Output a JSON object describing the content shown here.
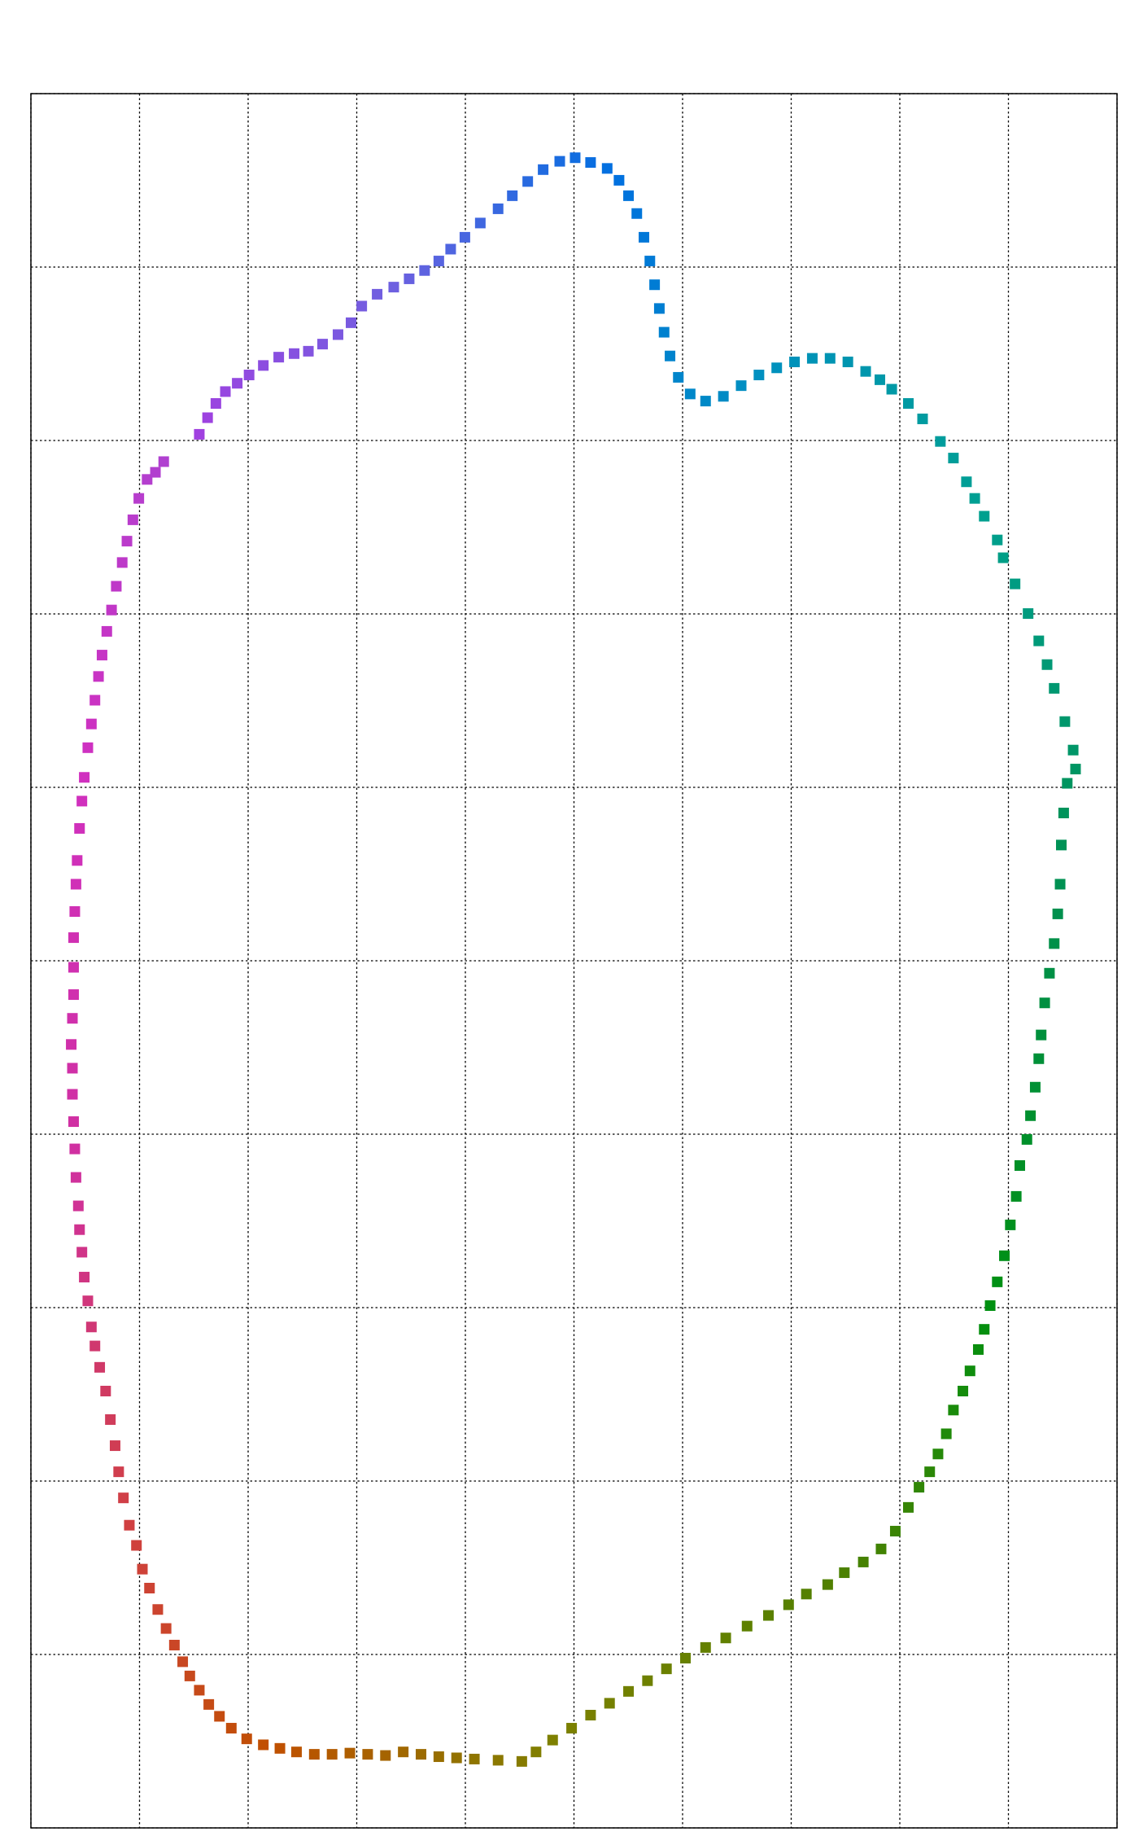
{
  "chart_data": {
    "type": "scatter",
    "grid": true,
    "marker": "square",
    "colormap": [
      "#a040e0",
      "#7060e0",
      "#0070e0",
      "#0090c0",
      "#00a090",
      "#009050",
      "#009010",
      "#508000",
      "#808000",
      "#c05000",
      "#d04040",
      "#d030a0",
      "#d030c0",
      "#b040d0"
    ],
    "xlim": [
      0,
      916
    ],
    "ylim": [
      0,
      1461
    ],
    "xticks": [
      0,
      91.6,
      183.2,
      274.8,
      366.4,
      458,
      549.6,
      641.2,
      732.8,
      824.4,
      916
    ],
    "yticks": [
      0,
      146.1,
      292.2,
      438.3,
      584.4,
      730.5,
      876.6,
      1022.7,
      1168.8,
      1314.9,
      1461
    ],
    "x": [
      142,
      149,
      156,
      164,
      174,
      184,
      196,
      209,
      222,
      234,
      246,
      259,
      270,
      279,
      292,
      306,
      319,
      332,
      344,
      354,
      366,
      379,
      394,
      406,
      419,
      432,
      446,
      459,
      472,
      486,
      496,
      504,
      511,
      517,
      522,
      526,
      530,
      534,
      539,
      546,
      556,
      569,
      584,
      599,
      614,
      629,
      644,
      659,
      674,
      689,
      704,
      716,
      726,
      740,
      752,
      767,
      778,
      789,
      796,
      804,
      815,
      820,
      830,
      841,
      850,
      857,
      863,
      872,
      879,
      881,
      874,
      871,
      869,
      868,
      866,
      863,
      859,
      855,
      852,
      850,
      847,
      843,
      840,
      834,
      831,
      826,
      821,
      815,
      809,
      804,
      799,
      792,
      786,
      778,
      772,
      765,
      758,
      749,
      740,
      729,
      717,
      702,
      686,
      672,
      654,
      639,
      622,
      604,
      586,
      569,
      552,
      536,
      520,
      504,
      488,
      472,
      456,
      440,
      426,
      414,
      394,
      374,
      359,
      344,
      329,
      314,
      299,
      284,
      269,
      254,
      239,
      224,
      210,
      196,
      182,
      169,
      159,
      150,
      142,
      134,
      128,
      121,
      114,
      107,
      100,
      94,
      89,
      83,
      78,
      74,
      71,
      67,
      63,
      58,
      54,
      51,
      48,
      45,
      43,
      41,
      40,
      38,
      37,
      36,
      35,
      35,
      34,
      35,
      36,
      36,
      36,
      37,
      38,
      39,
      41,
      43,
      45,
      48,
      51,
      54,
      57,
      60,
      64,
      68,
      72,
      77,
      81,
      86,
      91,
      98,
      105,
      112
    ],
    "values": [
      1174,
      1188,
      1200,
      1210,
      1217,
      1224,
      1232,
      1239,
      1242,
      1244,
      1250,
      1258,
      1268,
      1282,
      1292,
      1298,
      1305,
      1312,
      1320,
      1330,
      1340,
      1352,
      1364,
      1375,
      1387,
      1397,
      1404,
      1407,
      1403,
      1398,
      1388,
      1375,
      1360,
      1340,
      1320,
      1300,
      1280,
      1260,
      1240,
      1222,
      1208,
      1202,
      1206,
      1215,
      1224,
      1230,
      1235,
      1238,
      1238,
      1235,
      1227,
      1220,
      1212,
      1200,
      1187,
      1168,
      1154,
      1134,
      1120,
      1105,
      1085,
      1070,
      1048,
      1023,
      1000,
      980,
      960,
      932,
      908,
      892,
      880,
      855,
      828,
      795,
      770,
      745,
      720,
      695,
      668,
      648,
      624,
      600,
      580,
      558,
      532,
      508,
      482,
      460,
      440,
      420,
      403,
      385,
      368,
      352,
      332,
      315,
      300,
      287,
      270,
      250,
      235,
      224,
      215,
      205,
      197,
      188,
      179,
      170,
      160,
      152,
      143,
      134,
      124,
      115,
      105,
      95,
      84,
      74,
      64,
      56,
      57,
      58,
      59,
      60,
      62,
      64,
      61,
      62,
      63,
      62,
      62,
      64,
      67,
      70,
      75,
      84,
      94,
      104,
      116,
      128,
      140,
      154,
      168,
      184,
      202,
      218,
      238,
      255,
      278,
      300,
      322,
      344,
      368,
      388,
      406,
      422,
      444,
      464,
      485,
      504,
      524,
      548,
      572,
      595,
      618,
      640,
      660,
      682,
      702,
      725,
      750,
      772,
      795,
      815,
      842,
      865,
      885,
      910,
      930,
      950,
      970,
      988,
      1008,
      1026,
      1046,
      1066,
      1084,
      1102,
      1120,
      1136,
      1142,
      1151
    ]
  }
}
